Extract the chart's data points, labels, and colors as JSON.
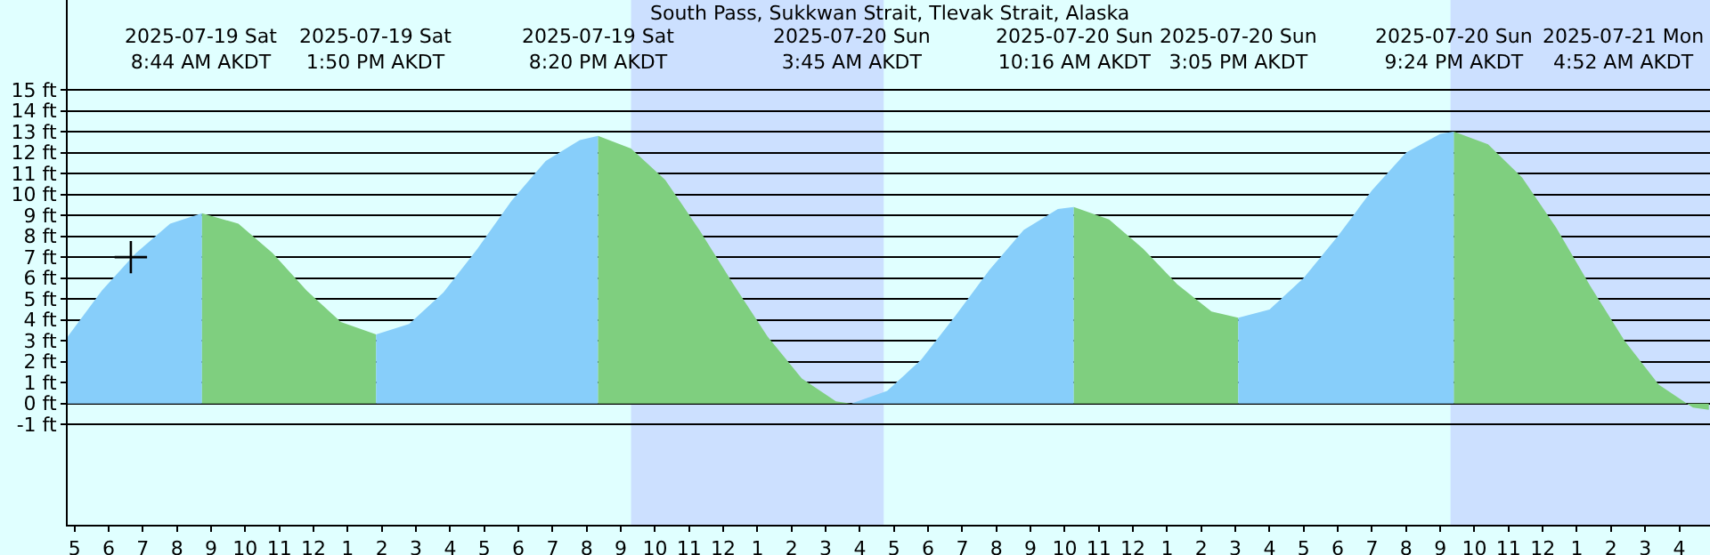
{
  "chart_data": {
    "type": "area",
    "title": "South Pass, Sukkwan Strait, Tlevak Strait, Alaska",
    "xlim": [
      "2025-07-19T04:48",
      "2025-07-21T04:54"
    ],
    "ylim": [
      -5.8,
      19.3
    ],
    "xticks": [
      {
        "value": "2025-07-19T05:00",
        "label": "5"
      },
      {
        "value": "2025-07-19T06:00",
        "label": "6"
      },
      {
        "value": "2025-07-19T07:00",
        "label": "7"
      },
      {
        "value": "2025-07-19T08:00",
        "label": "8"
      },
      {
        "value": "2025-07-19T09:00",
        "label": "9"
      },
      {
        "value": "2025-07-19T10:00",
        "label": "10"
      },
      {
        "value": "2025-07-19T11:00",
        "label": "11"
      },
      {
        "value": "2025-07-19T12:00",
        "label": "12"
      },
      {
        "value": "2025-07-19T13:00",
        "label": "1"
      },
      {
        "value": "2025-07-19T14:00",
        "label": "2"
      },
      {
        "value": "2025-07-19T15:00",
        "label": "3"
      },
      {
        "value": "2025-07-19T16:00",
        "label": "4"
      },
      {
        "value": "2025-07-19T17:00",
        "label": "5"
      },
      {
        "value": "2025-07-19T18:00",
        "label": "6"
      },
      {
        "value": "2025-07-19T19:00",
        "label": "7"
      },
      {
        "value": "2025-07-19T20:00",
        "label": "8"
      },
      {
        "value": "2025-07-19T21:00",
        "label": "9"
      },
      {
        "value": "2025-07-19T22:00",
        "label": "10"
      },
      {
        "value": "2025-07-19T23:00",
        "label": "11"
      },
      {
        "value": "2025-07-20T00:00",
        "label": "12"
      },
      {
        "value": "2025-07-20T01:00",
        "label": "1"
      },
      {
        "value": "2025-07-20T02:00",
        "label": "2"
      },
      {
        "value": "2025-07-20T03:00",
        "label": "3"
      },
      {
        "value": "2025-07-20T04:00",
        "label": "4"
      },
      {
        "value": "2025-07-20T05:00",
        "label": "5"
      },
      {
        "value": "2025-07-20T06:00",
        "label": "6"
      },
      {
        "value": "2025-07-20T07:00",
        "label": "7"
      },
      {
        "value": "2025-07-20T08:00",
        "label": "8"
      },
      {
        "value": "2025-07-20T09:00",
        "label": "9"
      },
      {
        "value": "2025-07-20T10:00",
        "label": "10"
      },
      {
        "value": "2025-07-20T11:00",
        "label": "11"
      },
      {
        "value": "2025-07-20T12:00",
        "label": "12"
      },
      {
        "value": "2025-07-20T13:00",
        "label": "1"
      },
      {
        "value": "2025-07-20T14:00",
        "label": "2"
      },
      {
        "value": "2025-07-20T15:00",
        "label": "3"
      },
      {
        "value": "2025-07-20T16:00",
        "label": "4"
      },
      {
        "value": "2025-07-20T17:00",
        "label": "5"
      },
      {
        "value": "2025-07-20T18:00",
        "label": "6"
      },
      {
        "value": "2025-07-20T19:00",
        "label": "7"
      },
      {
        "value": "2025-07-20T20:00",
        "label": "8"
      },
      {
        "value": "2025-07-20T21:00",
        "label": "9"
      },
      {
        "value": "2025-07-20T22:00",
        "label": "10"
      },
      {
        "value": "2025-07-20T23:00",
        "label": "11"
      },
      {
        "value": "2025-07-21T00:00",
        "label": "12"
      },
      {
        "value": "2025-07-21T01:00",
        "label": "1"
      },
      {
        "value": "2025-07-21T02:00",
        "label": "2"
      },
      {
        "value": "2025-07-21T03:00",
        "label": "3"
      },
      {
        "value": "2025-07-21T04:00",
        "label": "4"
      }
    ],
    "yticks": [
      {
        "value": -1,
        "label": "-1 ft"
      },
      {
        "value": 0,
        "label": "0 ft"
      },
      {
        "value": 1,
        "label": "1 ft"
      },
      {
        "value": 2,
        "label": "2 ft"
      },
      {
        "value": 3,
        "label": "3 ft"
      },
      {
        "value": 4,
        "label": "4 ft"
      },
      {
        "value": 5,
        "label": "5 ft"
      },
      {
        "value": 6,
        "label": "6 ft"
      },
      {
        "value": 7,
        "label": "7 ft"
      },
      {
        "value": 8,
        "label": "8 ft"
      },
      {
        "value": 9,
        "label": "9 ft"
      },
      {
        "value": 10,
        "label": "10 ft"
      },
      {
        "value": 11,
        "label": "11 ft"
      },
      {
        "value": 12,
        "label": "12 ft"
      },
      {
        "value": 13,
        "label": "13 ft"
      },
      {
        "value": 14,
        "label": "14 ft"
      },
      {
        "value": 15,
        "label": "15 ft"
      }
    ],
    "grid": "y",
    "bands": [
      {
        "axis": "x",
        "from": "2025-07-19T21:18",
        "to": "2025-07-20T04:42",
        "color": "#cce0ff"
      },
      {
        "axis": "x",
        "from": "2025-07-20T21:18",
        "to": "2025-07-21T04:54",
        "color": "#cce0ff"
      }
    ],
    "series": [
      {
        "color": "#87cefa",
        "x": [
          "2025-07-19T04:48",
          "2025-07-19T05:48",
          "2025-07-19T06:48",
          "2025-07-19T07:48",
          "2025-07-19T08:44"
        ],
        "values": [
          3.2,
          5.4,
          7.2,
          8.6,
          9.1
        ]
      },
      {
        "color": "#7fcf7f",
        "x": [
          "2025-07-19T08:44",
          "2025-07-19T09:48",
          "2025-07-19T10:48",
          "2025-07-19T11:48",
          "2025-07-19T12:48",
          "2025-07-19T13:50"
        ],
        "values": [
          9.1,
          8.6,
          7.2,
          5.4,
          3.9,
          3.3
        ]
      },
      {
        "color": "#87cefa",
        "x": [
          "2025-07-19T13:50",
          "2025-07-19T14:48",
          "2025-07-19T15:48",
          "2025-07-19T16:48",
          "2025-07-19T17:48",
          "2025-07-19T18:48",
          "2025-07-19T19:48",
          "2025-07-19T20:20"
        ],
        "values": [
          3.3,
          3.8,
          5.3,
          7.4,
          9.7,
          11.6,
          12.6,
          12.8
        ]
      },
      {
        "color": "#7fcf7f",
        "x": [
          "2025-07-19T20:20",
          "2025-07-19T21:18",
          "2025-07-19T22:18",
          "2025-07-19T23:18",
          "2025-07-20T00:18",
          "2025-07-20T01:18",
          "2025-07-20T02:18",
          "2025-07-20T03:18",
          "2025-07-20T03:45"
        ],
        "values": [
          12.8,
          12.2,
          10.7,
          8.3,
          5.7,
          3.2,
          1.2,
          0.1,
          0.0
        ]
      },
      {
        "color": "#87cefa",
        "x": [
          "2025-07-20T03:45",
          "2025-07-20T04:48",
          "2025-07-20T05:48",
          "2025-07-20T06:48",
          "2025-07-20T07:48",
          "2025-07-20T08:48",
          "2025-07-20T09:48",
          "2025-07-20T10:16"
        ],
        "values": [
          0.0,
          0.6,
          2.1,
          4.2,
          6.4,
          8.3,
          9.3,
          9.4
        ]
      },
      {
        "color": "#7fcf7f",
        "x": [
          "2025-07-20T10:16",
          "2025-07-20T11:18",
          "2025-07-20T12:18",
          "2025-07-20T13:18",
          "2025-07-20T14:18",
          "2025-07-20T15:05"
        ],
        "values": [
          9.4,
          8.8,
          7.4,
          5.7,
          4.4,
          4.1
        ]
      },
      {
        "color": "#87cefa",
        "x": [
          "2025-07-20T15:05",
          "2025-07-20T16:00",
          "2025-07-20T17:00",
          "2025-07-20T18:00",
          "2025-07-20T19:00",
          "2025-07-20T20:00",
          "2025-07-20T21:00",
          "2025-07-20T21:24"
        ],
        "values": [
          4.1,
          4.5,
          6.0,
          8.0,
          10.2,
          12.0,
          12.9,
          13.0
        ]
      },
      {
        "color": "#7fcf7f",
        "x": [
          "2025-07-20T21:24",
          "2025-07-20T22:24",
          "2025-07-20T23:24",
          "2025-07-21T00:24",
          "2025-07-21T01:24",
          "2025-07-21T02:24",
          "2025-07-21T03:24",
          "2025-07-21T04:24",
          "2025-07-21T04:52"
        ],
        "values": [
          13.0,
          12.4,
          10.8,
          8.4,
          5.6,
          3.0,
          0.9,
          -0.2,
          -0.3
        ]
      },
      {
        "type": "scatter",
        "marker": "cross",
        "color": "#000000",
        "x": [
          "2025-07-19T06:39"
        ],
        "values": [
          7.0
        ]
      }
    ],
    "annotations": [
      "2025-07-19 Sat\n8:44 AM AKDT",
      "2025-07-19 Sat\n1:50 PM AKDT",
      "2025-07-19 Sat\n8:20 PM AKDT",
      "2025-07-20 Sun\n3:45 AM AKDT",
      "2025-07-20 Sun\n10:16 AM AKDT",
      "2025-07-20 Sun\n3:05 PM AKDT",
      "2025-07-20 Sun\n9:24 PM AKDT",
      "2025-07-21 Mon\n4:52 AM AKDT"
    ]
  }
}
